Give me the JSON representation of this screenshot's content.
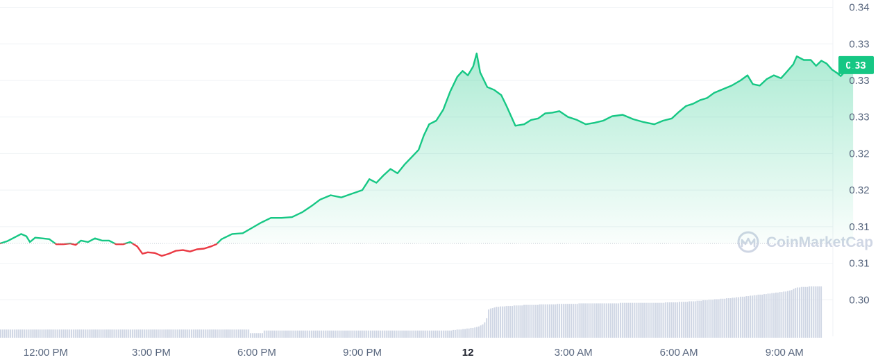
{
  "watermark": {
    "text": "CoinMarketCap",
    "icon": "coinmarketcap-logo-icon"
  },
  "current_price_label": "0.33",
  "colors": {
    "up": "#16c784",
    "down": "#ea3943",
    "volume": "#cfd6e4",
    "grid": "#eff2f5",
    "baseline": "#c3c9d4"
  },
  "chart_data": {
    "type": "line",
    "title": "",
    "xlabel": "",
    "ylabel": "",
    "ylim": [
      0.2955,
      0.3415
    ],
    "y_tick_values": [
      0.3405,
      0.3355,
      0.3305,
      0.3255,
      0.3205,
      0.3155,
      0.3105,
      0.3055,
      0.3005
    ],
    "y_tick_labels": [
      "0.34",
      "0.33",
      "0.33",
      "0.33",
      "0.32",
      "0.32",
      "0.31",
      "0.31",
      "0.30"
    ],
    "x_ticks": [
      {
        "hour": 0,
        "label": "12:00 PM",
        "bold": false
      },
      {
        "hour": 3,
        "label": "3:00 PM",
        "bold": false
      },
      {
        "hour": 6,
        "label": "6:00 PM",
        "bold": false
      },
      {
        "hour": 9,
        "label": "9:00 PM",
        "bold": false
      },
      {
        "hour": 12,
        "label": "12",
        "bold": true
      },
      {
        "hour": 15,
        "label": "3:00 AM",
        "bold": false
      },
      {
        "hour": 18,
        "label": "6:00 AM",
        "bold": false
      },
      {
        "hour": 21,
        "label": "9:00 AM",
        "bold": false
      }
    ],
    "x_range_hours": [
      -1.3,
      23.6
    ],
    "x_unit": "hours from 12:00 PM",
    "reference_price": 0.3082,
    "grid": true,
    "series": [
      {
        "values_hour_price": [
          [
            -1.3,
            0.3082
          ],
          [
            -1.1,
            0.3085
          ],
          [
            -0.9,
            0.309
          ],
          [
            -0.7,
            0.3095
          ],
          [
            -0.55,
            0.3092
          ],
          [
            -0.45,
            0.3084
          ],
          [
            -0.3,
            0.309
          ],
          [
            -0.1,
            0.3089
          ],
          [
            0.1,
            0.3088
          ],
          [
            0.3,
            0.3081
          ],
          [
            0.5,
            0.3081
          ],
          [
            0.7,
            0.3082
          ],
          [
            0.85,
            0.308
          ],
          [
            1.0,
            0.3086
          ],
          [
            1.2,
            0.3084
          ],
          [
            1.4,
            0.3089
          ],
          [
            1.6,
            0.3086
          ],
          [
            1.8,
            0.3086
          ],
          [
            2.0,
            0.3081
          ],
          [
            2.2,
            0.3081
          ],
          [
            2.4,
            0.3084
          ],
          [
            2.6,
            0.3078
          ],
          [
            2.75,
            0.3068
          ],
          [
            2.9,
            0.307
          ],
          [
            3.1,
            0.3069
          ],
          [
            3.3,
            0.3065
          ],
          [
            3.5,
            0.3068
          ],
          [
            3.7,
            0.3072
          ],
          [
            3.9,
            0.3073
          ],
          [
            4.1,
            0.3071
          ],
          [
            4.3,
            0.3074
          ],
          [
            4.5,
            0.3075
          ],
          [
            4.7,
            0.3078
          ],
          [
            4.85,
            0.3081
          ],
          [
            5.0,
            0.3088
          ],
          [
            5.3,
            0.3095
          ],
          [
            5.6,
            0.3096
          ],
          [
            5.85,
            0.3103
          ],
          [
            6.1,
            0.311
          ],
          [
            6.4,
            0.3117
          ],
          [
            6.7,
            0.3117
          ],
          [
            7.0,
            0.3118
          ],
          [
            7.3,
            0.3125
          ],
          [
            7.55,
            0.3133
          ],
          [
            7.8,
            0.3142
          ],
          [
            8.1,
            0.3148
          ],
          [
            8.4,
            0.3145
          ],
          [
            8.7,
            0.315
          ],
          [
            9.0,
            0.3155
          ],
          [
            9.2,
            0.317
          ],
          [
            9.4,
            0.3165
          ],
          [
            9.6,
            0.3175
          ],
          [
            9.8,
            0.3184
          ],
          [
            10.0,
            0.3178
          ],
          [
            10.2,
            0.319
          ],
          [
            10.4,
            0.32
          ],
          [
            10.6,
            0.321
          ],
          [
            10.75,
            0.323
          ],
          [
            10.9,
            0.3245
          ],
          [
            11.1,
            0.325
          ],
          [
            11.3,
            0.3265
          ],
          [
            11.5,
            0.329
          ],
          [
            11.7,
            0.331
          ],
          [
            11.85,
            0.3318
          ],
          [
            12.0,
            0.3312
          ],
          [
            12.15,
            0.3324
          ],
          [
            12.25,
            0.3342
          ],
          [
            12.35,
            0.3316
          ],
          [
            12.55,
            0.3296
          ],
          [
            12.75,
            0.3292
          ],
          [
            12.95,
            0.3285
          ],
          [
            13.1,
            0.327
          ],
          [
            13.35,
            0.3243
          ],
          [
            13.6,
            0.3245
          ],
          [
            13.8,
            0.3251
          ],
          [
            14.0,
            0.3253
          ],
          [
            14.2,
            0.326
          ],
          [
            14.4,
            0.3261
          ],
          [
            14.6,
            0.3263
          ],
          [
            14.85,
            0.3255
          ],
          [
            15.1,
            0.3251
          ],
          [
            15.35,
            0.3245
          ],
          [
            15.6,
            0.3247
          ],
          [
            15.85,
            0.325
          ],
          [
            16.1,
            0.3256
          ],
          [
            16.4,
            0.3258
          ],
          [
            16.7,
            0.3252
          ],
          [
            17.0,
            0.3248
          ],
          [
            17.3,
            0.3245
          ],
          [
            17.55,
            0.325
          ],
          [
            17.8,
            0.3253
          ],
          [
            18.0,
            0.3262
          ],
          [
            18.2,
            0.327
          ],
          [
            18.4,
            0.3273
          ],
          [
            18.6,
            0.3278
          ],
          [
            18.8,
            0.3281
          ],
          [
            19.0,
            0.3288
          ],
          [
            19.25,
            0.3293
          ],
          [
            19.5,
            0.3298
          ],
          [
            19.75,
            0.3305
          ],
          [
            19.95,
            0.3312
          ],
          [
            20.1,
            0.33
          ],
          [
            20.3,
            0.3298
          ],
          [
            20.5,
            0.3307
          ],
          [
            20.7,
            0.3312
          ],
          [
            20.9,
            0.3308
          ],
          [
            21.05,
            0.3316
          ],
          [
            21.25,
            0.3327
          ],
          [
            21.35,
            0.3338
          ],
          [
            21.55,
            0.3333
          ],
          [
            21.75,
            0.3333
          ],
          [
            21.9,
            0.3325
          ],
          [
            22.05,
            0.3332
          ],
          [
            22.2,
            0.3328
          ],
          [
            22.35,
            0.332
          ],
          [
            22.5,
            0.3315
          ],
          [
            22.6,
            0.3311
          ],
          [
            22.7,
            0.3316
          ],
          [
            22.95,
            0.3326
          ]
        ]
      }
    ],
    "volume_relative": [
      0.16,
      0.16,
      0.16,
      0.16,
      0.16,
      0.16,
      0.16,
      0.16,
      0.16,
      0.16,
      0.16,
      0.16,
      0.16,
      0.16,
      0.16,
      0.16,
      0.16,
      0.16,
      0.16,
      0.16,
      0.16,
      0.16,
      0.16,
      0.16,
      0.16,
      0.16,
      0.16,
      0.16,
      0.16,
      0.16,
      0.16,
      0.16,
      0.16,
      0.16,
      0.16,
      0.16,
      0.16,
      0.16,
      0.16,
      0.16,
      0.16,
      0.16,
      0.16,
      0.16,
      0.16,
      0.16,
      0.16,
      0.16,
      0.16,
      0.16,
      0.16,
      0.16,
      0.16,
      0.16,
      0.16,
      0.16,
      0.16,
      0.16,
      0.16,
      0.16,
      0.16,
      0.16,
      0.16,
      0.16,
      0.16,
      0.16,
      0.16,
      0.16,
      0.16,
      0.16,
      0.16,
      0.16,
      0.16,
      0.16,
      0.16,
      0.16,
      0.16,
      0.16,
      0.16,
      0.16,
      0.16,
      0.16,
      0.16,
      0.16,
      0.16,
      0.16,
      0.16,
      0.16,
      0.16,
      0.16,
      0.16,
      0.16,
      0.16,
      0.16,
      0.16,
      0.16,
      0.16,
      0.16,
      0.16,
      0.16,
      0.16,
      0.16,
      0.16,
      0.16,
      0.16,
      0.16,
      0.16,
      0.16,
      0.16,
      0.16,
      0.16,
      0.16,
      0.16,
      0.16,
      0.16,
      0.16,
      0.16,
      0.16,
      0.16,
      0.16,
      0.16,
      0.16,
      0.16,
      0.16,
      0.16,
      0.16,
      0.16,
      0.09,
      0.09,
      0.09,
      0.09,
      0.09,
      0.09,
      0.09,
      0.14,
      0.14,
      0.14,
      0.14,
      0.14,
      0.14,
      0.14,
      0.14,
      0.14,
      0.14,
      0.14,
      0.14,
      0.14,
      0.14,
      0.14,
      0.14,
      0.14,
      0.14,
      0.14,
      0.14,
      0.14,
      0.14,
      0.14,
      0.14,
      0.14,
      0.14,
      0.14,
      0.14,
      0.14,
      0.14,
      0.14,
      0.14,
      0.14,
      0.14,
      0.14,
      0.14,
      0.14,
      0.14,
      0.14,
      0.14,
      0.14,
      0.14,
      0.14,
      0.14,
      0.14,
      0.14,
      0.14,
      0.14,
      0.14,
      0.14,
      0.14,
      0.14,
      0.14,
      0.14,
      0.14,
      0.14,
      0.14,
      0.14,
      0.14,
      0.14,
      0.14,
      0.14,
      0.14,
      0.14,
      0.14,
      0.14,
      0.14,
      0.14,
      0.14,
      0.14,
      0.14,
      0.14,
      0.14,
      0.14,
      0.14,
      0.14,
      0.14,
      0.14,
      0.14,
      0.14,
      0.14,
      0.14,
      0.14,
      0.14,
      0.14,
      0.14,
      0.14,
      0.14,
      0.14,
      0.14,
      0.14,
      0.14,
      0.14,
      0.14,
      0.14,
      0.14,
      0.15,
      0.15,
      0.16,
      0.16,
      0.16,
      0.17,
      0.17,
      0.18,
      0.18,
      0.19,
      0.19,
      0.2,
      0.21,
      0.22,
      0.24,
      0.26,
      0.3,
      0.38,
      0.55,
      0.57,
      0.58,
      0.59,
      0.6,
      0.6,
      0.61,
      0.61,
      0.61,
      0.62,
      0.62,
      0.62,
      0.62,
      0.63,
      0.63,
      0.63,
      0.63,
      0.63,
      0.64,
      0.64,
      0.64,
      0.64,
      0.64,
      0.64,
      0.64,
      0.64,
      0.65,
      0.65,
      0.65,
      0.65,
      0.65,
      0.65,
      0.65,
      0.65,
      0.65,
      0.66,
      0.66,
      0.66,
      0.66,
      0.66,
      0.66,
      0.66,
      0.66,
      0.66,
      0.66,
      0.66,
      0.67,
      0.67,
      0.67,
      0.67,
      0.67,
      0.67,
      0.67,
      0.67,
      0.67,
      0.67,
      0.67,
      0.67,
      0.67,
      0.67,
      0.67,
      0.67,
      0.67,
      0.67,
      0.67,
      0.67,
      0.67,
      0.68,
      0.68,
      0.68,
      0.68,
      0.68,
      0.68,
      0.68,
      0.68,
      0.68,
      0.68,
      0.68,
      0.68,
      0.68,
      0.68,
      0.68,
      0.68,
      0.68,
      0.68,
      0.68,
      0.68,
      0.68,
      0.68,
      0.68,
      0.69,
      0.69,
      0.69,
      0.69,
      0.69,
      0.69,
      0.69,
      0.7,
      0.7,
      0.7,
      0.7,
      0.7,
      0.71,
      0.71,
      0.71,
      0.71,
      0.72,
      0.72,
      0.72,
      0.73,
      0.73,
      0.73,
      0.74,
      0.74,
      0.74,
      0.75,
      0.75,
      0.75,
      0.76,
      0.76,
      0.76,
      0.77,
      0.77,
      0.77,
      0.78,
      0.78,
      0.79,
      0.79,
      0.8,
      0.8,
      0.8,
      0.81,
      0.81,
      0.82,
      0.82,
      0.83,
      0.83,
      0.84,
      0.84,
      0.84,
      0.85,
      0.85,
      0.86,
      0.86,
      0.87,
      0.87,
      0.88,
      0.88,
      0.89,
      0.89,
      0.9,
      0.9,
      0.91,
      0.92,
      0.93,
      0.95,
      0.97,
      0.98,
      0.98,
      0.99,
      0.99,
      0.99,
      0.99,
      1.0,
      1.0,
      1.0,
      1.0,
      1.0,
      1.0,
      1.0
    ]
  }
}
